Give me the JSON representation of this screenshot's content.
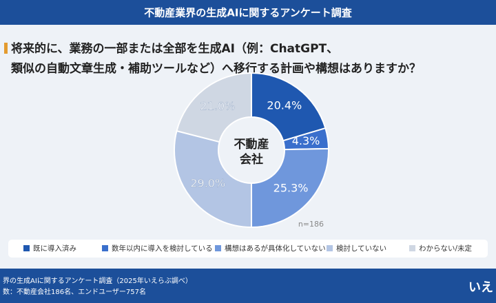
{
  "header": {
    "title": "不動産業界の生成AIに関するアンケート調査"
  },
  "chart_data": {
    "type": "pie",
    "title_lines": [
      "将来的に、業務の一部または全部を生成AI（例：ChatGPT、",
      "類似の自動文章生成・補助ツールなど）へ移行する計画や構想はありますか？"
    ],
    "center_label_lines": [
      "不動産",
      "会社"
    ],
    "annotation": "n=186",
    "categories": [
      "既に導入済み",
      "数年以内に導入を検討している",
      "構想はあるが具体化していない",
      "検討していない",
      "わからない/未定"
    ],
    "values": [
      20.4,
      4.3,
      25.3,
      29.0,
      21.0
    ],
    "value_labels": [
      "20.4%",
      "4.3%",
      "25.3%",
      "29.0%",
      "21.0%"
    ],
    "colors": [
      "#1f58b0",
      "#3a6fcc",
      "#6f97dc",
      "#b3c5e4",
      "#cfd7e3"
    ],
    "legend": "bottom"
  },
  "footer": {
    "lines": [
      "界の生成AIに関するアンケート調査（2025年いえらぶ調べ）",
      "数：不動産会社186名、エンドユーザー757名"
    ],
    "logo": "いえ"
  }
}
